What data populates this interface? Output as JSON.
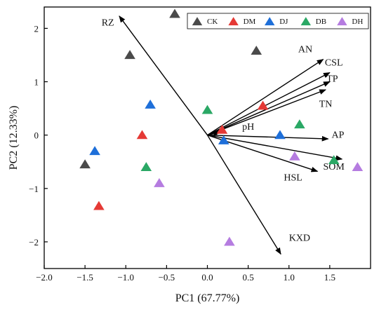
{
  "chart_data": {
    "type": "scatter",
    "title": "",
    "xlabel": "PC1 (67.77%)",
    "ylabel": "PC2 (12.33%)",
    "xlim": [
      -2.0,
      2.0
    ],
    "ylim": [
      -2.5,
      2.4
    ],
    "xticks": [
      -2.0,
      -1.5,
      -1.0,
      -0.5,
      0.0,
      0.5,
      1.0,
      1.5
    ],
    "xtick_labels": [
      "−2.0",
      "−1.5",
      "−1.0",
      "−0.5",
      "0.0",
      "0.5",
      "1.0",
      "1.5"
    ],
    "yticks": [
      -2,
      -1,
      0,
      1,
      2
    ],
    "ytick_labels": [
      "−2",
      "−1",
      "0",
      "1",
      "2"
    ],
    "grid": false,
    "legend_position": "top-right",
    "series": [
      {
        "name": "CK",
        "color": "#4a4a4a",
        "marker": "triangle",
        "points": [
          [
            -1.5,
            -0.55
          ],
          [
            -0.95,
            1.5
          ],
          [
            -0.4,
            2.27
          ],
          [
            0.6,
            1.58
          ]
        ]
      },
      {
        "name": "DM",
        "color": "#e53935",
        "marker": "triangle",
        "points": [
          [
            -1.33,
            -1.33
          ],
          [
            -0.8,
            0.0
          ],
          [
            0.18,
            0.1
          ],
          [
            0.68,
            0.55
          ]
        ]
      },
      {
        "name": "DJ",
        "color": "#1e6fd9",
        "marker": "triangle",
        "points": [
          [
            -1.38,
            -0.3
          ],
          [
            -0.7,
            0.57
          ],
          [
            0.2,
            -0.1
          ],
          [
            0.89,
            0.0
          ]
        ]
      },
      {
        "name": "DB",
        "color": "#2aa865",
        "marker": "triangle",
        "points": [
          [
            -0.75,
            -0.6
          ],
          [
            0.0,
            0.47
          ],
          [
            1.13,
            0.2
          ],
          [
            1.55,
            -0.47
          ]
        ]
      },
      {
        "name": "DH",
        "color": "#b57ce0",
        "marker": "triangle",
        "points": [
          [
            -0.59,
            -0.9
          ],
          [
            0.27,
            -2.0
          ],
          [
            1.07,
            -0.4
          ],
          [
            1.84,
            -0.6
          ]
        ]
      }
    ],
    "loadings": [
      {
        "label": "RZ",
        "x": -1.08,
        "y": 2.23,
        "label_x": -1.22,
        "label_y": 2.05
      },
      {
        "label": "AN",
        "x": 1.42,
        "y": 1.42,
        "label_x": 1.2,
        "label_y": 1.55
      },
      {
        "label": "CSL",
        "x": 1.5,
        "y": 1.17,
        "label_x": 1.55,
        "label_y": 1.3
      },
      {
        "label": "TP",
        "x": 1.5,
        "y": 1.0,
        "label_x": 1.53,
        "label_y": 1.0
      },
      {
        "label": "TN",
        "x": 1.45,
        "y": 0.85,
        "label_x": 1.45,
        "label_y": 0.53
      },
      {
        "label": "pH",
        "x": 0.15,
        "y": 0.05,
        "label_x": 0.5,
        "label_y": 0.1
      },
      {
        "label": "AP",
        "x": 1.48,
        "y": -0.07,
        "label_x": 1.6,
        "label_y": -0.05
      },
      {
        "label": "SOM",
        "x": 1.65,
        "y": -0.45,
        "label_x": 1.55,
        "label_y": -0.65
      },
      {
        "label": "HSL",
        "x": 1.35,
        "y": -0.68,
        "label_x": 1.05,
        "label_y": -0.85
      },
      {
        "label": "KXD",
        "x": 0.9,
        "y": -2.23,
        "label_x": 1.13,
        "label_y": -1.98
      }
    ]
  }
}
